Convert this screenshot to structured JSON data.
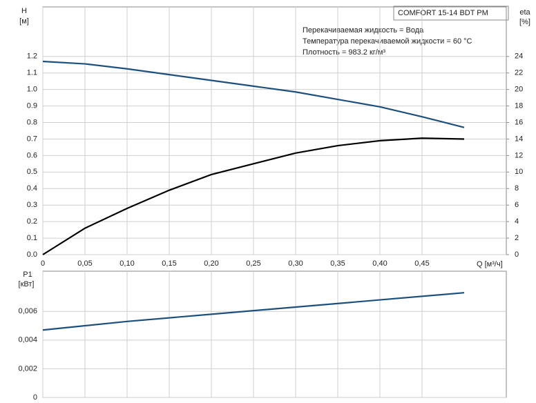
{
  "chart_data": [
    {
      "type": "line",
      "legend_box": "COMFORT 15-14 BDT PM",
      "annotations": [
        "Перекачиваемая жидкость = Вода",
        "Температура перекачиваемой жидкости = 60 °C",
        "Плотность = 983.2 кг/м³"
      ],
      "yunit": "[м]",
      "y2unit": "[%]",
      "xlabel": "Q [м³/ч]",
      "x": [
        0,
        0.05,
        0.1,
        0.15,
        0.2,
        0.25,
        0.3,
        0.35,
        0.4,
        0.45,
        0.5
      ],
      "xlim": [
        0,
        0.55
      ],
      "xticks": [
        0,
        {
          "value": 0.05,
          "label": "0,05"
        },
        {
          "value": 0.1,
          "label": "0,10"
        },
        {
          "value": 0.15,
          "label": "0,15"
        },
        {
          "value": 0.2,
          "label": "0,20"
        },
        {
          "value": 0.25,
          "label": "0,25"
        },
        {
          "value": 0.3,
          "label": "0,30"
        },
        {
          "value": 0.35,
          "label": "0,35"
        },
        {
          "value": 0.4,
          "label": "0,40"
        },
        {
          "value": 0.45,
          "label": "0,45"
        }
      ],
      "ylim": [
        0,
        1.5
      ],
      "yticks": [
        {
          "value": 0,
          "label": "0.0"
        },
        0.1,
        0.2,
        0.3,
        0.4,
        0.5,
        0.6,
        0.7,
        0.8,
        0.9,
        {
          "value": 1,
          "label": "1.0"
        },
        1.1,
        1.2
      ],
      "y2lim": [
        0,
        30
      ],
      "y2ticks": [
        0,
        2,
        4,
        6,
        8,
        10,
        12,
        14,
        16,
        18,
        20,
        22,
        24
      ],
      "grid": true,
      "series": [
        {
          "name": "H",
          "color": "#1d4f7c",
          "values": [
            1.17,
            1.155,
            1.125,
            1.09,
            1.055,
            1.02,
            0.985,
            0.94,
            0.895,
            0.835,
            0.77
          ]
        },
        {
          "name": "eta",
          "color": "#000000",
          "axis": "y2",
          "values": [
            0,
            3.2,
            5.6,
            7.8,
            9.7,
            11.0,
            12.3,
            13.2,
            13.8,
            14.1,
            14.0
          ]
        }
      ]
    },
    {
      "type": "line",
      "yunit": "[кВт]",
      "x": [
        0,
        0.1,
        0.2,
        0.3,
        0.4,
        0.5
      ],
      "xlim": [
        0,
        0.55
      ],
      "xticks": [
        0,
        0.05,
        0.1,
        0.15,
        0.2,
        0.25,
        0.3,
        0.35,
        0.4,
        0.45
      ],
      "ylim": [
        0,
        0.0088
      ],
      "yticks": [
        0,
        {
          "value": 0.002,
          "label": "0,002"
        },
        {
          "value": 0.004,
          "label": "0,004"
        },
        {
          "value": 0.006,
          "label": "0,006"
        }
      ],
      "grid": true,
      "series": [
        {
          "name": "P1",
          "color": "#1d4f7c",
          "values": [
            0.0047,
            0.0053,
            0.0058,
            0.0063,
            0.0068,
            0.0073
          ]
        }
      ]
    }
  ]
}
